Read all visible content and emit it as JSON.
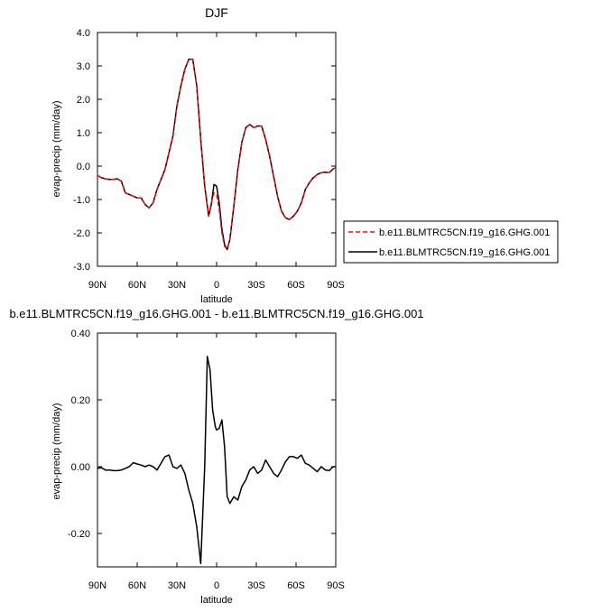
{
  "chart_data": [
    {
      "type": "line",
      "title": "DJF",
      "xlabel": "latitude",
      "ylabel": "evap-precip (mm/day)",
      "xlim": [
        90,
        -90
      ],
      "ylim": [
        -3.0,
        4.0
      ],
      "xticks": [
        90,
        60,
        30,
        0,
        -30,
        -60,
        -90
      ],
      "xtick_labels": [
        "90N",
        "60N",
        "30N",
        "0",
        "30S",
        "60S",
        "90S"
      ],
      "yticks": [
        -3.0,
        -2.0,
        -1.0,
        0.0,
        1.0,
        2.0,
        3.0,
        4.0
      ],
      "ytick_labels": [
        "-3.0",
        "-2.0",
        "-1.0",
        "0.0",
        "1.0",
        "2.0",
        "3.0",
        "4.0"
      ],
      "legend_position": "right",
      "series": [
        {
          "name": "b.e11.BLMTRC5CN.f19_g16.GHG.001",
          "color": "#e01010",
          "dash": "dashed",
          "x": [
            90,
            87,
            84,
            81,
            78,
            75,
            72,
            69,
            66,
            63,
            60,
            57,
            54,
            51,
            48,
            45,
            42,
            39,
            36,
            33,
            30,
            27,
            24,
            21,
            18,
            15,
            12,
            9,
            6,
            4,
            2,
            0,
            -2,
            -4,
            -6,
            -8,
            -10,
            -13,
            -16,
            -19,
            -22,
            -25,
            -28,
            -31,
            -34,
            -37,
            -40,
            -43,
            -46,
            -49,
            -52,
            -55,
            -58,
            -61,
            -64,
            -67,
            -70,
            -73,
            -76,
            -79,
            -82,
            -85,
            -88,
            -90
          ],
          "y": [
            -0.28,
            -0.35,
            -0.38,
            -0.4,
            -0.4,
            -0.38,
            -0.45,
            -0.8,
            -0.85,
            -0.9,
            -0.95,
            -0.95,
            -1.15,
            -1.25,
            -1.1,
            -0.7,
            -0.4,
            -0.1,
            0.4,
            0.9,
            1.8,
            2.4,
            2.9,
            3.2,
            3.2,
            2.4,
            0.8,
            -0.6,
            -1.5,
            -1.1,
            -0.8,
            -0.85,
            -1.3,
            -2.0,
            -2.4,
            -2.48,
            -2.2,
            -1.2,
            -0.1,
            0.7,
            1.15,
            1.25,
            1.15,
            1.2,
            1.2,
            0.8,
            0.3,
            -0.3,
            -0.9,
            -1.35,
            -1.55,
            -1.6,
            -1.5,
            -1.35,
            -1.1,
            -0.7,
            -0.5,
            -0.35,
            -0.25,
            -0.2,
            -0.18,
            -0.2,
            -0.08,
            -0.05
          ]
        },
        {
          "name": "b.e11.BLMTRC5CN.f19_g16.GHG.001",
          "color": "#000000",
          "dash": "solid",
          "x": [
            90,
            87,
            84,
            81,
            78,
            75,
            72,
            69,
            66,
            63,
            60,
            57,
            54,
            51,
            48,
            45,
            42,
            39,
            36,
            33,
            30,
            27,
            24,
            21,
            18,
            15,
            12,
            9,
            6,
            4,
            2,
            0,
            -2,
            -4,
            -6,
            -8,
            -10,
            -13,
            -16,
            -19,
            -22,
            -25,
            -28,
            -31,
            -34,
            -37,
            -40,
            -43,
            -46,
            -49,
            -52,
            -55,
            -58,
            -61,
            -64,
            -67,
            -70,
            -73,
            -76,
            -79,
            -82,
            -85,
            -88,
            -90
          ],
          "y": [
            -0.28,
            -0.35,
            -0.38,
            -0.4,
            -0.4,
            -0.38,
            -0.45,
            -0.8,
            -0.85,
            -0.9,
            -0.95,
            -0.95,
            -1.15,
            -1.25,
            -1.1,
            -0.7,
            -0.4,
            -0.1,
            0.4,
            0.9,
            1.8,
            2.4,
            2.9,
            3.2,
            3.2,
            2.4,
            0.8,
            -0.6,
            -1.5,
            -1.15,
            -0.55,
            -0.6,
            -1.1,
            -1.9,
            -2.35,
            -2.5,
            -2.2,
            -1.2,
            -0.1,
            0.7,
            1.15,
            1.25,
            1.15,
            1.2,
            1.2,
            0.8,
            0.3,
            -0.3,
            -0.9,
            -1.35,
            -1.55,
            -1.6,
            -1.5,
            -1.35,
            -1.1,
            -0.7,
            -0.5,
            -0.35,
            -0.25,
            -0.2,
            -0.18,
            -0.2,
            -0.08,
            -0.05
          ]
        }
      ]
    },
    {
      "type": "line",
      "title": "b.e11.BLMTRC5CN.f19_g16.GHG.001 - b.e11.BLMTRC5CN.f19_g16.GHG.001",
      "xlabel": "latitude",
      "ylabel": "evap-precip (mm/day)",
      "xlim": [
        90,
        -90
      ],
      "ylim": [
        -0.3,
        0.4
      ],
      "xticks": [
        90,
        60,
        30,
        0,
        -30,
        -60,
        -90
      ],
      "xtick_labels": [
        "90N",
        "60N",
        "30N",
        "0",
        "30S",
        "60S",
        "90S"
      ],
      "yticks": [
        -0.2,
        0.0,
        0.2,
        0.4
      ],
      "ytick_labels": [
        "-0.20",
        "0.00",
        "0.20",
        "0.40"
      ],
      "series": [
        {
          "color": "#000000",
          "dash": "solid",
          "x": [
            90,
            87,
            84,
            81,
            78,
            75,
            72,
            69,
            66,
            63,
            60,
            57,
            54,
            51,
            48,
            45,
            42,
            39,
            36,
            33,
            30,
            27,
            24,
            21,
            18,
            15,
            12,
            9,
            7,
            5,
            3,
            1,
            0,
            -2,
            -4,
            -6,
            -8,
            -10,
            -13,
            -16,
            -19,
            -22,
            -25,
            -28,
            -31,
            -34,
            -37,
            -40,
            -43,
            -46,
            -49,
            -52,
            -55,
            -58,
            -61,
            -64,
            -67,
            -70,
            -73,
            -76,
            -79,
            -82,
            -85,
            -88,
            -90
          ],
          "y": [
            -0.005,
            -0.003,
            -0.01,
            -0.01,
            -0.012,
            -0.012,
            -0.01,
            -0.005,
            0.0,
            0.012,
            0.008,
            0.005,
            0.0,
            0.005,
            0.0,
            -0.01,
            0.01,
            0.03,
            0.035,
            0.0,
            -0.005,
            0.005,
            -0.02,
            -0.07,
            -0.11,
            -0.18,
            -0.29,
            0.0,
            0.33,
            0.29,
            0.17,
            0.12,
            0.11,
            0.115,
            0.14,
            0.06,
            -0.09,
            -0.11,
            -0.09,
            -0.1,
            -0.06,
            -0.04,
            -0.01,
            0.0,
            -0.02,
            -0.01,
            0.02,
            0.0,
            -0.02,
            -0.03,
            -0.01,
            0.015,
            0.03,
            0.03,
            0.025,
            0.035,
            0.01,
            0.005,
            -0.005,
            -0.015,
            0.0,
            -0.01,
            -0.012,
            0.0,
            0.0
          ]
        }
      ]
    }
  ]
}
